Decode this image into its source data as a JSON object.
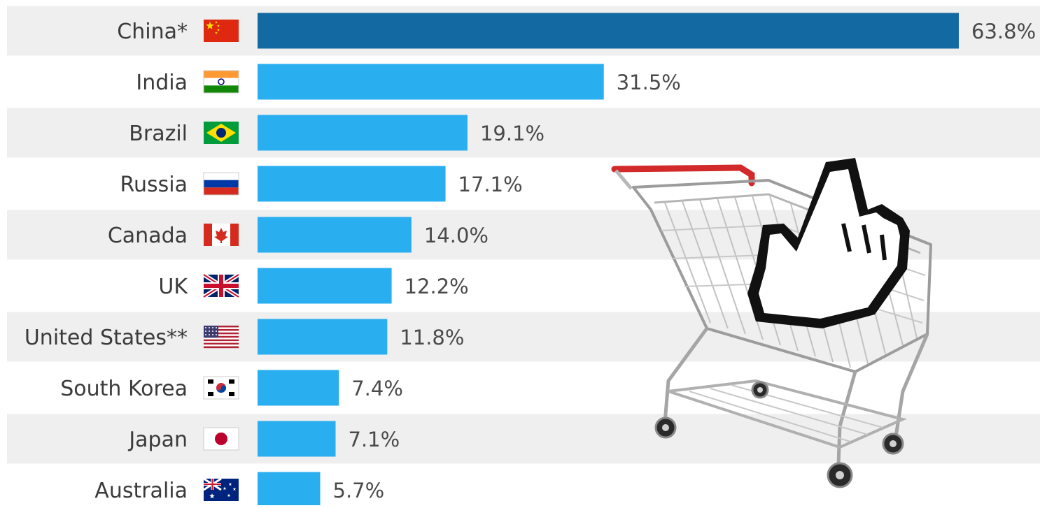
{
  "chart_data": {
    "type": "bar",
    "orientation": "horizontal",
    "categories": [
      "China*",
      "India",
      "Brazil",
      "Russia",
      "Canada",
      "UK",
      "United States**",
      "South Korea",
      "Japan",
      "Australia"
    ],
    "values": [
      63.8,
      31.5,
      19.1,
      17.1,
      14.0,
      12.2,
      11.8,
      7.4,
      7.1,
      5.7
    ],
    "value_labels": [
      "63.8%",
      "31.5%",
      "19.1%",
      "17.1%",
      "14.0%",
      "12.2%",
      "11.8%",
      "7.4%",
      "7.1%",
      "5.7%"
    ],
    "flag_icons": [
      "china-flag-icon",
      "india-flag-icon",
      "brazil-flag-icon",
      "russia-flag-icon",
      "canada-flag-icon",
      "uk-flag-icon",
      "us-flag-icon",
      "south-korea-flag-icon",
      "japan-flag-icon",
      "australia-flag-icon"
    ],
    "highlight_index": 0,
    "xlim": [
      0,
      63.8
    ],
    "title": "",
    "xlabel": "",
    "ylabel": "",
    "grid": false,
    "legend": "none",
    "colors": {
      "bar": "#29aef0",
      "highlight_bar": "#1369a2",
      "row_band": "#efefef",
      "label_text": "#3b3b3b",
      "value_text": "#4a4a4a"
    }
  },
  "illustration": {
    "icon": "shopping-cart-with-cursor-hand-icon"
  }
}
